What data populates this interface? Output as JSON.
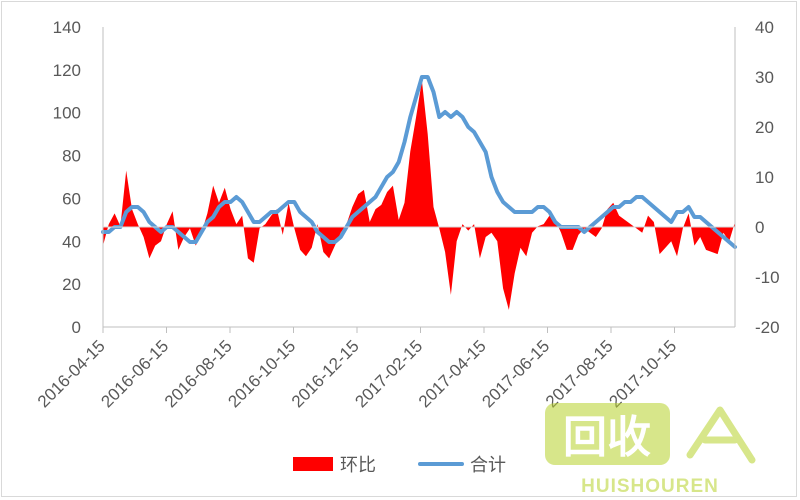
{
  "chart_data": {
    "type": "area",
    "title": "",
    "xlabel": "",
    "ylabel": "",
    "x_tick_labels": [
      "2016-04-15",
      "2016-06-15",
      "2016-08-15",
      "2016-10-15",
      "2016-12-15",
      "2017-02-15",
      "2017-04-15",
      "2017-06-15",
      "2017-08-15",
      "2017-10-15"
    ],
    "y_left": {
      "ylim": [
        0,
        140
      ],
      "ticks": [
        0,
        20,
        40,
        60,
        80,
        100,
        120,
        140
      ]
    },
    "y_right": {
      "ylim": [
        -20,
        40
      ],
      "ticks": [
        -20,
        -10,
        0,
        10,
        20,
        30,
        40
      ]
    },
    "grid": false,
    "legend_position": "bottom",
    "series": [
      {
        "name": "环比",
        "type": "area",
        "axis": "left",
        "color": "#ff0000",
        "values": [
          38,
          48,
          53,
          47,
          73,
          55,
          48,
          42,
          32,
          38,
          40,
          48,
          54,
          36,
          42,
          46,
          38,
          44,
          53,
          66,
          58,
          65,
          55,
          48,
          52,
          32,
          30,
          46,
          48,
          52,
          55,
          43,
          58,
          46,
          36,
          33,
          37,
          48,
          35,
          32,
          38,
          44,
          48,
          56,
          62,
          64,
          49,
          55,
          57,
          63,
          66,
          50,
          58,
          82,
          98,
          115,
          90,
          56,
          46,
          35,
          15,
          40,
          48,
          45,
          48,
          32,
          42,
          44,
          40,
          18,
          8,
          25,
          37,
          33,
          44,
          47,
          48,
          52,
          50,
          44,
          36,
          36,
          43,
          46,
          44,
          42,
          46,
          55,
          58,
          52,
          50,
          48,
          46,
          44,
          52,
          49,
          34,
          37,
          40,
          33,
          46,
          53,
          38,
          42,
          36,
          35,
          34,
          44,
          40,
          49
        ]
      },
      {
        "name": "合计",
        "type": "line",
        "axis": "right",
        "color": "#5b9bd5",
        "values": [
          -1,
          -1,
          0,
          0,
          3,
          4,
          4,
          3,
          1,
          0,
          -1,
          0,
          0,
          -1,
          -2,
          -3,
          -3,
          -1,
          1,
          2,
          4,
          5,
          5,
          6,
          5,
          3,
          1,
          1,
          2,
          3,
          3,
          4,
          5,
          5,
          3,
          2,
          1,
          -1,
          -2,
          -3,
          -3,
          -2,
          0,
          2,
          3,
          4,
          5,
          6,
          8,
          10,
          11,
          13,
          17,
          22,
          26,
          30,
          30,
          27,
          22,
          23,
          22,
          23,
          22,
          20,
          19,
          17,
          15,
          10,
          7,
          5,
          4,
          3,
          3,
          3,
          3,
          4,
          4,
          3,
          1,
          0,
          0,
          0,
          0,
          -1,
          0,
          1,
          2,
          3,
          4,
          4,
          5,
          5,
          6,
          6,
          5,
          4,
          3,
          2,
          1,
          3,
          3,
          4,
          2,
          2,
          1,
          0,
          -1,
          -2,
          -3,
          -4
        ]
      }
    ]
  },
  "legend": {
    "items": [
      {
        "label": "环比",
        "color": "#ff0000"
      },
      {
        "label": "合计",
        "color": "#5b9bd5"
      }
    ]
  },
  "watermark": {
    "text": "回收",
    "subtext": "HUISHOUREN"
  }
}
